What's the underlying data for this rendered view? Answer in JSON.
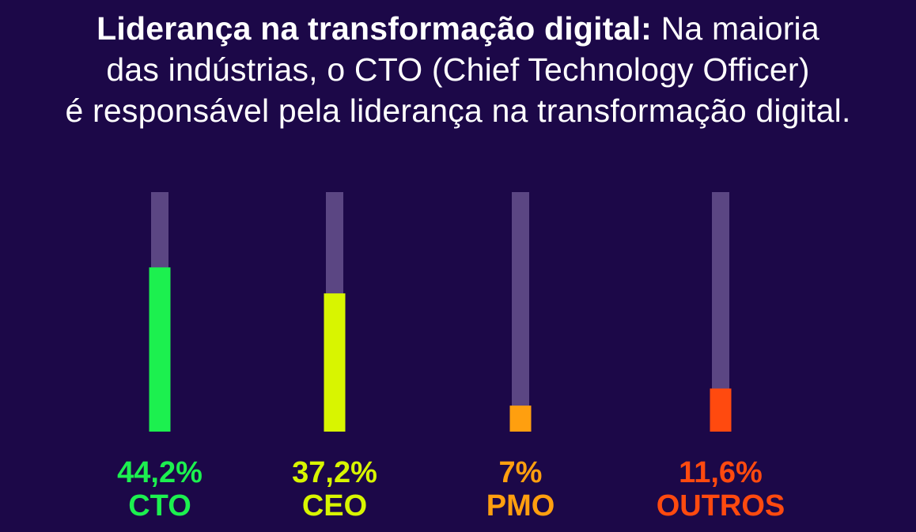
{
  "header": {
    "title_bold": "Liderança na transformação digital:",
    "title_rest_line1": "Na maioria",
    "title_line2": "das indústrias, o CTO (Chief Technology Officer)",
    "title_line3": "é responsável pela liderança na transformação digital."
  },
  "colors": {
    "background": "#1c0848",
    "track": "#5b4683",
    "cto": "#1cf04f",
    "ceo": "#d8f500",
    "pmo": "#ff9f0f",
    "outros": "#ff4a0f"
  },
  "chart_data": {
    "type": "bar",
    "categories": [
      "CTO",
      "CEO",
      "PMO",
      "OUTROS"
    ],
    "values": [
      44.2,
      37.2,
      7,
      11.6
    ],
    "value_labels": [
      "44,2%",
      "37,2%",
      "7%",
      "11,6%"
    ],
    "ylim": [
      0,
      100
    ],
    "grid": false,
    "legend": "none"
  }
}
